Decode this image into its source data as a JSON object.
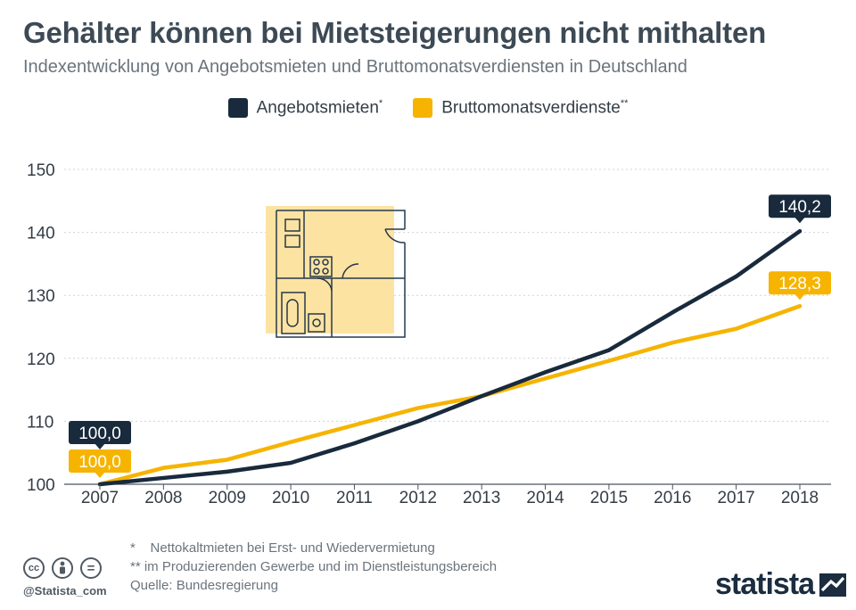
{
  "title": "Gehälter können bei Mietsteigerungen nicht mithalten",
  "subtitle": "Indexentwicklung von Angebotsmieten und Bruttomonatsverdiensten in Deutschland",
  "legend": [
    {
      "label": "Angebotsmieten",
      "mark": "*",
      "color": "#182a3c"
    },
    {
      "label": "Bruttomonatsverdienste",
      "mark": "**",
      "color": "#f6b400"
    }
  ],
  "footnotes": [
    "*    Nettokaltmieten bei Erst- und Wiedervermietung",
    "** im Produzierenden Gewerbe und im Dienstleistungsbereich",
    "Quelle: Bundesregierung"
  ],
  "cc_icons": [
    {
      "name": "cc-icon",
      "glyph": "cc"
    },
    {
      "name": "person-icon",
      "glyph": "i"
    },
    {
      "name": "equals-icon",
      "glyph": "="
    }
  ],
  "handle": "@Statista_com",
  "brand": "statista",
  "chart_data": {
    "type": "line",
    "title": "Gehälter können bei Mietsteigerungen nicht mithalten",
    "subtitle": "Indexentwicklung von Angebotsmieten und Bruttomonatsverdiensten in Deutschland",
    "x": [
      "2007",
      "2008",
      "2009",
      "2010",
      "2011",
      "2012",
      "2013",
      "2014",
      "2015",
      "2016",
      "2017",
      "2018"
    ],
    "ylim": [
      100,
      150
    ],
    "yticks": [
      "100",
      "110",
      "120",
      "130",
      "140",
      "150"
    ],
    "grid": true,
    "legend_position": "top",
    "series": [
      {
        "name": "Angebotsmieten*",
        "color": "#182a3c",
        "values": [
          100.0,
          101.0,
          102.0,
          103.4,
          106.5,
          110.0,
          114.0,
          117.8,
          121.3,
          127.3,
          133.0,
          140.2
        ],
        "labels": [
          {
            "index": 0,
            "text": "100,0"
          },
          {
            "index": 11,
            "text": "140,2"
          }
        ]
      },
      {
        "name": "Bruttomonatsverdienste**",
        "color": "#f6b400",
        "values": [
          100.0,
          102.6,
          103.9,
          106.7,
          109.4,
          112.1,
          114.0,
          116.8,
          119.6,
          122.5,
          124.7,
          128.3
        ],
        "labels": [
          {
            "index": 0,
            "text": "100,0"
          },
          {
            "index": 11,
            "text": "128,3"
          }
        ]
      }
    ]
  }
}
